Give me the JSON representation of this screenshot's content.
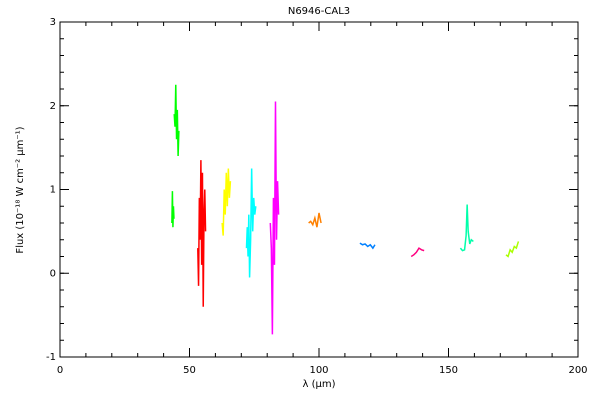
{
  "chart_data": {
    "type": "line",
    "title": "N6946-CAL3",
    "xlabel": "λ (µm)",
    "ylabel": "Flux (10⁻¹⁸ W cm⁻² µm⁻¹)",
    "xlim": [
      0,
      200
    ],
    "ylim": [
      -1,
      3
    ],
    "xticks": [
      0,
      50,
      100,
      150,
      200
    ],
    "yticks": [
      -1,
      0,
      1,
      2,
      3
    ],
    "xminor_step": 10,
    "yminor_step": 0.2,
    "series": [
      {
        "color": "#00ff00",
        "x": [
          43.2,
          43.4,
          43.6,
          43.8,
          44.0
        ],
        "values": [
          0.6,
          0.98,
          0.55,
          0.8,
          0.65
        ]
      },
      {
        "color": "#00ff00",
        "x": [
          44.1,
          44.4,
          44.7,
          45.0,
          45.3,
          45.6,
          45.9
        ],
        "values": [
          1.9,
          1.75,
          2.25,
          1.6,
          1.95,
          1.4,
          1.7
        ]
      },
      {
        "color": "#ff0000",
        "x": [
          53.2,
          53.5,
          53.8,
          54.1,
          54.4,
          54.7,
          55.0,
          55.3,
          55.6,
          55.9,
          56.2
        ],
        "values": [
          0.3,
          -0.15,
          0.9,
          0.4,
          1.35,
          0.1,
          1.2,
          -0.4,
          0.7,
          1.0,
          0.5
        ]
      },
      {
        "color": "#ffff00",
        "x": [
          62.6,
          63.0,
          63.4,
          63.8,
          64.2,
          64.6,
          65.0,
          65.4,
          65.8
        ],
        "values": [
          0.6,
          0.45,
          1.0,
          0.7,
          1.2,
          0.8,
          1.25,
          0.9,
          1.1
        ]
      },
      {
        "color": "#00ffff",
        "x": [
          72.0,
          72.3,
          72.6,
          72.9,
          73.2,
          73.6,
          74.0,
          74.4,
          74.8,
          75.2,
          75.6
        ],
        "values": [
          0.3,
          0.55,
          0.2,
          0.7,
          -0.05,
          0.4,
          1.25,
          0.5,
          0.9,
          0.7,
          0.8
        ]
      },
      {
        "color": "#ff00ff",
        "x": [
          81.2,
          81.6,
          82.0,
          82.4,
          82.8,
          83.2,
          83.6,
          84.0,
          84.4
        ],
        "values": [
          0.6,
          0.3,
          -0.73,
          0.9,
          0.1,
          2.05,
          0.4,
          1.1,
          0.7
        ]
      },
      {
        "color": "#ff8000",
        "x": [
          96.0,
          96.8,
          97.6,
          98.4,
          99.2,
          100.0,
          100.8
        ],
        "values": [
          0.6,
          0.62,
          0.58,
          0.66,
          0.55,
          0.72,
          0.6
        ]
      },
      {
        "color": "#0080ff",
        "x": [
          115.8,
          116.8,
          117.8,
          118.8,
          119.8,
          120.8,
          121.6
        ],
        "values": [
          0.36,
          0.34,
          0.35,
          0.32,
          0.34,
          0.3,
          0.34
        ]
      },
      {
        "color": "#ff0080",
        "x": [
          135.6,
          136.6,
          137.6,
          138.6,
          139.6,
          140.6
        ],
        "values": [
          0.2,
          0.22,
          0.25,
          0.3,
          0.28,
          0.27
        ]
      },
      {
        "color": "#00ffaa",
        "x": [
          154.6,
          155.4,
          156.2,
          156.8,
          157.2,
          157.6,
          158.2,
          158.8,
          159.6
        ],
        "values": [
          0.3,
          0.27,
          0.28,
          0.45,
          0.82,
          0.5,
          0.35,
          0.4,
          0.38
        ]
      },
      {
        "color": "#aaff00",
        "x": [
          172.2,
          173.0,
          173.8,
          174.6,
          175.4,
          176.2,
          177.0
        ],
        "values": [
          0.22,
          0.2,
          0.28,
          0.25,
          0.32,
          0.3,
          0.38
        ]
      }
    ]
  }
}
